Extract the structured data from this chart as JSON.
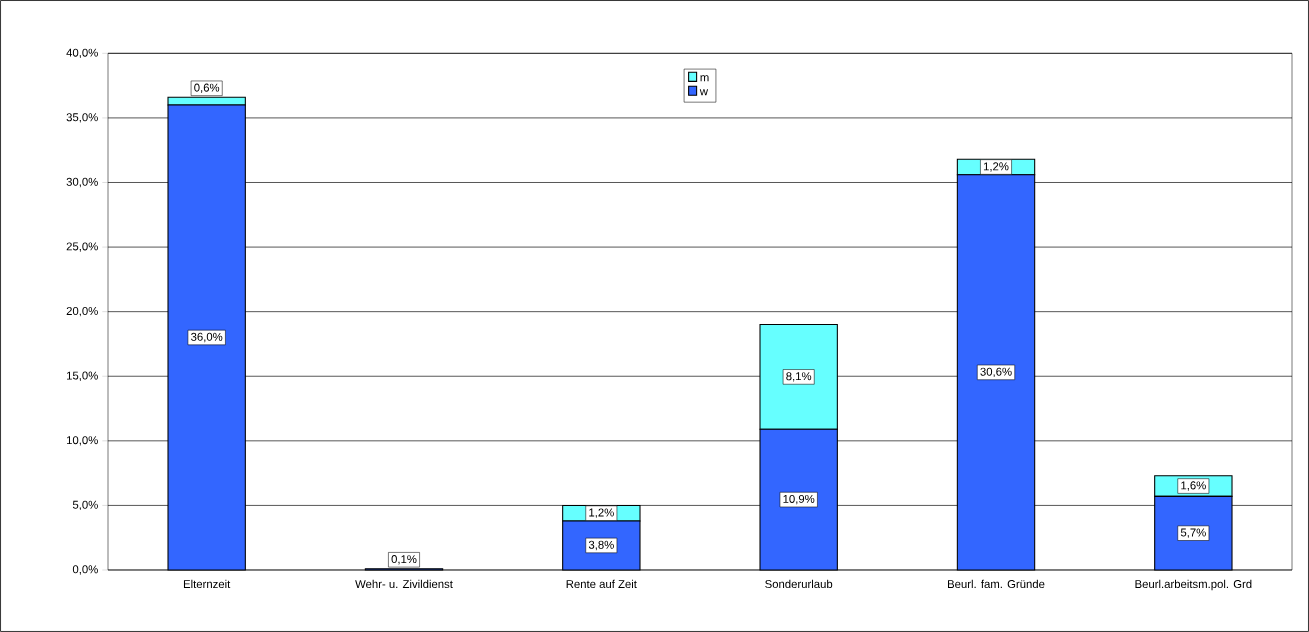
{
  "chart_data": {
    "type": "bar",
    "stacked": true,
    "categories": [
      "Elternzeit",
      "Wehr- u. Zivildienst",
      "Rente auf Zeit",
      "Sonderurlaub",
      "Beurl. fam. Gründe",
      "Beurl.arbeitsm.pol. Grd"
    ],
    "series": [
      {
        "name": "w",
        "color": "#3366ff",
        "values": [
          36.0,
          0.1,
          3.8,
          10.9,
          30.6,
          5.7
        ],
        "value_labels": [
          "36,0%",
          "0,1%",
          "3,8%",
          "10,9%",
          "30,6%",
          "5,7%"
        ]
      },
      {
        "name": "m",
        "color": "#66ffff",
        "values": [
          0.6,
          0.0,
          1.2,
          8.1,
          1.2,
          1.6
        ],
        "value_labels": [
          "0,6%",
          null,
          "1,2%",
          "8,1%",
          "1,2%",
          "1,6%"
        ]
      }
    ],
    "ylim": [
      0,
      40
    ],
    "yticks": [
      {
        "value": 0,
        "label": "0,0%"
      },
      {
        "value": 5,
        "label": "5,0%"
      },
      {
        "value": 10,
        "label": "10,0%"
      },
      {
        "value": 15,
        "label": "15,0%"
      },
      {
        "value": 20,
        "label": "20,0%"
      },
      {
        "value": 25,
        "label": "25,0%"
      },
      {
        "value": 30,
        "label": "30,0%"
      },
      {
        "value": 35,
        "label": "35,0%"
      },
      {
        "value": 40,
        "label": "40,0%"
      }
    ],
    "grid": "y",
    "legend": "top"
  }
}
